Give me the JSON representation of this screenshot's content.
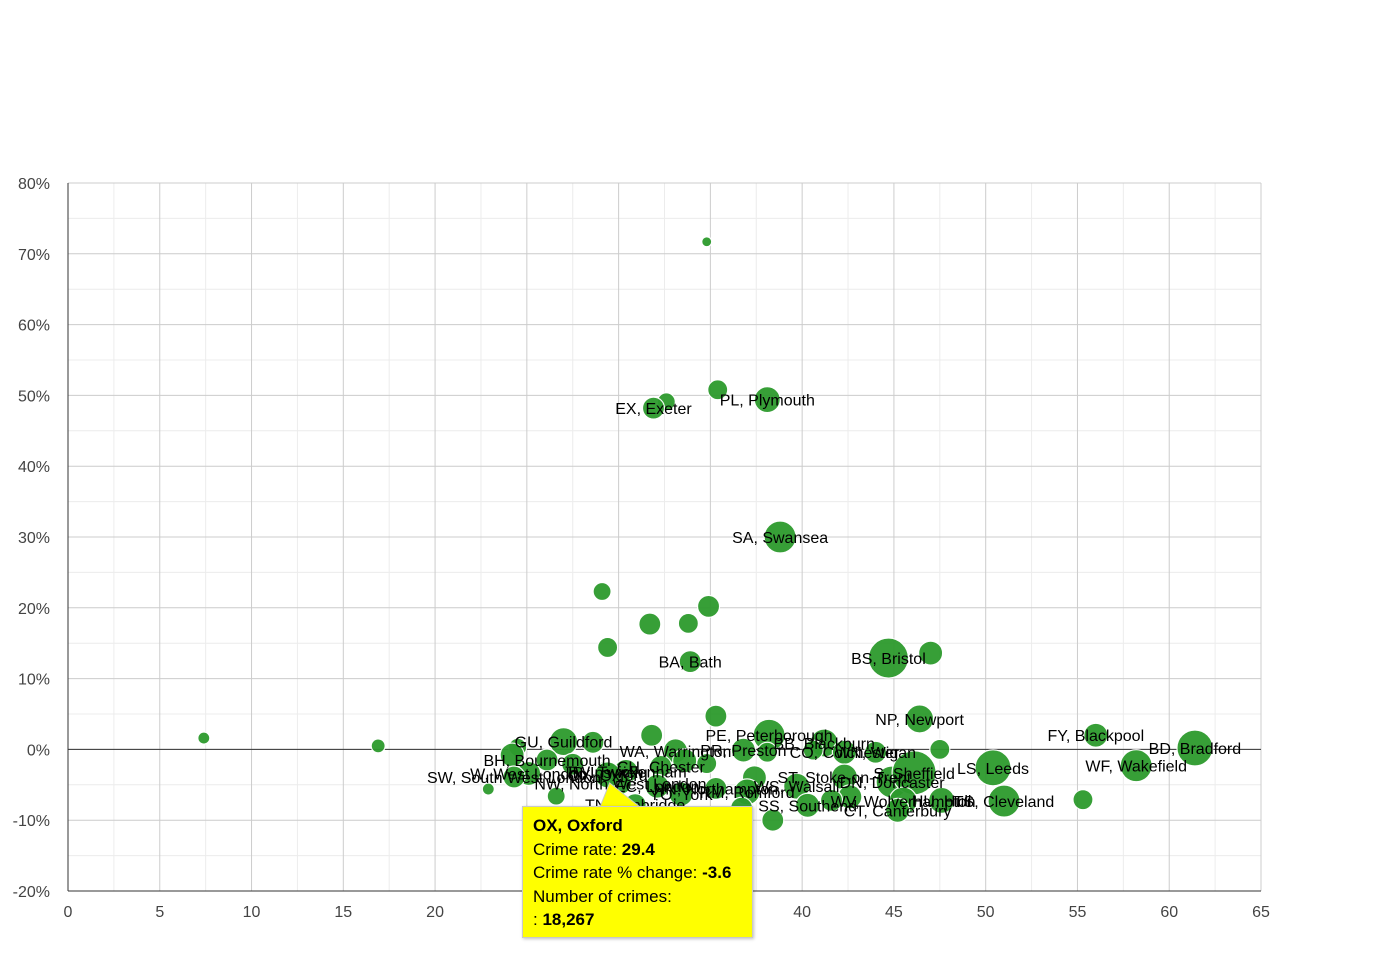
{
  "chart_data": {
    "type": "scatter",
    "title": "",
    "xlabel": "",
    "ylabel": "",
    "xlim": [
      0,
      65
    ],
    "ylim": [
      -20,
      80
    ],
    "x_ticks": [
      0,
      5,
      10,
      15,
      20,
      25,
      30,
      35,
      40,
      45,
      50,
      55,
      60,
      65
    ],
    "x_tick_labels": [
      "0",
      "5",
      "10",
      "15",
      "20",
      "",
      "",
      "",
      "40",
      "45",
      "50",
      "55",
      "60",
      "65"
    ],
    "y_ticks": [
      80,
      70,
      60,
      50,
      40,
      30,
      20,
      10,
      0,
      -10,
      -20
    ],
    "y_tick_labels": [
      "80%",
      "70%",
      "60%",
      "50%",
      "40%",
      "30%",
      "20%",
      "10%",
      "0%",
      "-10%",
      "-20%"
    ],
    "grid": true,
    "series_color": "#2d9a2d",
    "points": [
      {
        "x": 7.4,
        "y": 1.6,
        "size": 6,
        "label": ""
      },
      {
        "x": 16.9,
        "y": 0.5,
        "size": 7,
        "label": ""
      },
      {
        "x": 22.9,
        "y": -5.6,
        "size": 6,
        "label": ""
      },
      {
        "x": 34.8,
        "y": 71.7,
        "size": 5,
        "label": ""
      },
      {
        "x": 35.4,
        "y": 50.8,
        "size": 10,
        "label": ""
      },
      {
        "x": 32.6,
        "y": 49.1,
        "size": 9,
        "label": ""
      },
      {
        "x": 31.9,
        "y": 48.2,
        "size": 11,
        "label": "EX, Exeter"
      },
      {
        "x": 38.1,
        "y": 49.4,
        "size": 13,
        "label": "PL, Plymouth"
      },
      {
        "x": 38.8,
        "y": 30.0,
        "size": 16,
        "label": "SA, Swansea"
      },
      {
        "x": 29.1,
        "y": 22.3,
        "size": 9,
        "label": ""
      },
      {
        "x": 34.9,
        "y": 20.2,
        "size": 11,
        "label": ""
      },
      {
        "x": 31.7,
        "y": 17.7,
        "size": 11,
        "label": ""
      },
      {
        "x": 33.8,
        "y": 17.8,
        "size": 10,
        "label": ""
      },
      {
        "x": 29.4,
        "y": 14.4,
        "size": 10,
        "label": ""
      },
      {
        "x": 33.9,
        "y": 12.4,
        "size": 11,
        "label": "BA, Bath"
      },
      {
        "x": 44.7,
        "y": 12.9,
        "size": 20,
        "label": "BS, Bristol"
      },
      {
        "x": 47.0,
        "y": 13.6,
        "size": 12,
        "label": ""
      },
      {
        "x": 35.3,
        "y": 4.7,
        "size": 11,
        "label": ""
      },
      {
        "x": 46.4,
        "y": 4.3,
        "size": 14,
        "label": "NP, Newport"
      },
      {
        "x": 56.0,
        "y": 2.0,
        "size": 12,
        "label": "FY, Blackpool"
      },
      {
        "x": 61.4,
        "y": 0.2,
        "size": 18,
        "label": "BD, Bradford"
      },
      {
        "x": 58.2,
        "y": -2.3,
        "size": 16,
        "label": "WF, Wakefield"
      },
      {
        "x": 50.4,
        "y": -2.6,
        "size": 18,
        "label": "LS, Leeds"
      },
      {
        "x": 51.0,
        "y": -7.3,
        "size": 16,
        "label": "TS, Cleveland"
      },
      {
        "x": 55.3,
        "y": -7.1,
        "size": 10,
        "label": ""
      },
      {
        "x": 47.5,
        "y": 0.0,
        "size": 10,
        "label": ""
      },
      {
        "x": 41.2,
        "y": 0.9,
        "size": 14,
        "label": "BB, Blackburn"
      },
      {
        "x": 38.2,
        "y": 2.0,
        "size": 16,
        "label": "PE, Peterborough"
      },
      {
        "x": 31.8,
        "y": 2.0,
        "size": 11,
        "label": ""
      },
      {
        "x": 36.8,
        "y": -0.1,
        "size": 12,
        "label": "PR, Preston"
      },
      {
        "x": 42.3,
        "y": -0.4,
        "size": 12,
        "label": "CO, Colchester"
      },
      {
        "x": 33.1,
        "y": -0.2,
        "size": 12,
        "label": "WA, Warrington"
      },
      {
        "x": 27.0,
        "y": 1.1,
        "size": 14,
        "label": "GU, Guildford"
      },
      {
        "x": 28.6,
        "y": 1.0,
        "size": 11,
        "label": ""
      },
      {
        "x": 24.5,
        "y": 0.3,
        "size": 9,
        "label": ""
      },
      {
        "x": 24.2,
        "y": -0.8,
        "size": 12,
        "label": ""
      },
      {
        "x": 26.1,
        "y": -1.5,
        "size": 11,
        "label": "BH, Bournemouth"
      },
      {
        "x": 27.5,
        "y": -2.1,
        "size": 11,
        "label": ""
      },
      {
        "x": 25.1,
        "y": -3.4,
        "size": 12,
        "label": "W, West London"
      },
      {
        "x": 24.3,
        "y": -3.9,
        "size": 11,
        "label": "SW, South West London"
      },
      {
        "x": 29.3,
        "y": -3.2,
        "size": 11,
        "label": "IP, Ipswich"
      },
      {
        "x": 30.4,
        "y": -3.1,
        "size": 12,
        "label": "TW, Twickenham"
      },
      {
        "x": 32.3,
        "y": -2.4,
        "size": 11,
        "label": "CH, Chester"
      },
      {
        "x": 33.6,
        "y": -1.6,
        "size": 12,
        "label": ""
      },
      {
        "x": 34.8,
        "y": -2.0,
        "size": 10,
        "label": ""
      },
      {
        "x": 30.1,
        "y": -4.8,
        "size": 11,
        "label": "NW, North West London"
      },
      {
        "x": 32.1,
        "y": -5.2,
        "size": 12,
        "label": "EC, London"
      },
      {
        "x": 26.6,
        "y": -6.6,
        "size": 9,
        "label": ""
      },
      {
        "x": 29.4,
        "y": -3.6,
        "size": 13,
        "label": "OX, Oxford"
      },
      {
        "x": 30.9,
        "y": -7.8,
        "size": 11,
        "label": "TN, Tonbridge"
      },
      {
        "x": 33.4,
        "y": -6.3,
        "size": 12,
        "label": "YO, York"
      },
      {
        "x": 35.3,
        "y": -5.5,
        "size": 11,
        "label": "NN, Northampton"
      },
      {
        "x": 37.4,
        "y": -4.0,
        "size": 12,
        "label": ""
      },
      {
        "x": 37.0,
        "y": -6.0,
        "size": 13,
        "label": "RM, Romford"
      },
      {
        "x": 36.7,
        "y": -8.3,
        "size": 11,
        "label": ""
      },
      {
        "x": 38.4,
        "y": -10.0,
        "size": 11,
        "label": ""
      },
      {
        "x": 39.7,
        "y": -5.2,
        "size": 13,
        "label": "WS, Walsall"
      },
      {
        "x": 40.3,
        "y": -7.9,
        "size": 12,
        "label": "SS, Southend"
      },
      {
        "x": 42.3,
        "y": -3.9,
        "size": 13,
        "label": "ST, Stoke-on-Trent"
      },
      {
        "x": 42.6,
        "y": -6.7,
        "size": 12,
        "label": ""
      },
      {
        "x": 44.9,
        "y": -4.6,
        "size": 16,
        "label": "DN, Doncaster"
      },
      {
        "x": 46.1,
        "y": -3.3,
        "size": 22,
        "label": "S, Sheffield"
      },
      {
        "x": 45.5,
        "y": -7.3,
        "size": 14,
        "label": "WV, Wolverhampton"
      },
      {
        "x": 47.6,
        "y": -7.2,
        "size": 13,
        "label": "HU, Hull"
      },
      {
        "x": 45.2,
        "y": -8.6,
        "size": 12,
        "label": "CT, Canterbury"
      },
      {
        "x": 41.6,
        "y": -7.2,
        "size": 11,
        "label": ""
      },
      {
        "x": 38.1,
        "y": -0.4,
        "size": 10,
        "label": ""
      },
      {
        "x": 40.6,
        "y": -0.1,
        "size": 10,
        "label": ""
      },
      {
        "x": 44.0,
        "y": -0.4,
        "size": 11,
        "label": "WN, Wigan"
      }
    ],
    "tooltip": {
      "title": "OX, Oxford",
      "crime_rate_label": "Crime rate: ",
      "crime_rate_value": "29.4",
      "change_label": "Crime rate % change: ",
      "change_value": "-3.6",
      "count_label": "Number of crimes:",
      "count_prefix": ": ",
      "count_value": "18,267",
      "background": "#ffff00"
    }
  }
}
